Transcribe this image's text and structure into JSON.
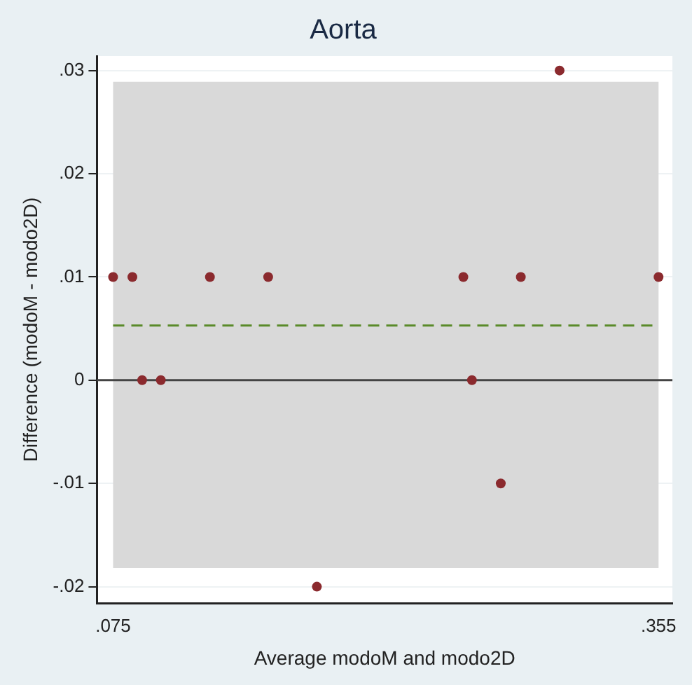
{
  "chart_data": {
    "type": "scatter",
    "title": "Aorta",
    "xlabel": "Average modoM and modo2D",
    "ylabel": "Difference (modoM - modo2D)",
    "x": [
      0.075,
      0.0849,
      0.0899,
      0.0995,
      0.1247,
      0.1546,
      0.1796,
      0.2548,
      0.2592,
      0.274,
      0.2843,
      0.3042,
      0.355
    ],
    "series": [
      {
        "color": "#8b2a2e",
        "values": [
          0.01,
          0.01,
          0,
          0,
          0.01,
          0.01,
          -0.02,
          0.01,
          0,
          -0.01,
          0.01,
          0.03,
          0.01
        ]
      }
    ],
    "marker": "circle",
    "xlim": [
      0.0667,
      0.3621
    ],
    "xticks": [
      {
        "value": 0.075,
        "label": ".075"
      },
      {
        "value": 0.355,
        "label": ".355"
      }
    ],
    "ylim": [
      -0.0216,
      0.0314
    ],
    "yticks": [
      {
        "value": -0.02,
        "label": "-.02"
      },
      {
        "value": -0.01,
        "label": "-.01"
      },
      {
        "value": 0,
        "label": "0"
      },
      {
        "value": 0.01,
        "label": ".01"
      },
      {
        "value": 0.02,
        "label": ".02"
      },
      {
        "value": 0.03,
        "label": ".03"
      }
    ],
    "grid": "y",
    "legend": false,
    "bands": [
      {
        "axis": "y",
        "from": -0.0182,
        "to": 0.0289,
        "color": "#d9d9d9"
      }
    ],
    "ref_lines": [
      {
        "axis": "y",
        "value": 0,
        "color": "#444444",
        "line_style": "solid"
      },
      {
        "axis": "y",
        "value": 0.0053,
        "color": "#5a8a2a",
        "line_style": "dashed"
      }
    ]
  }
}
